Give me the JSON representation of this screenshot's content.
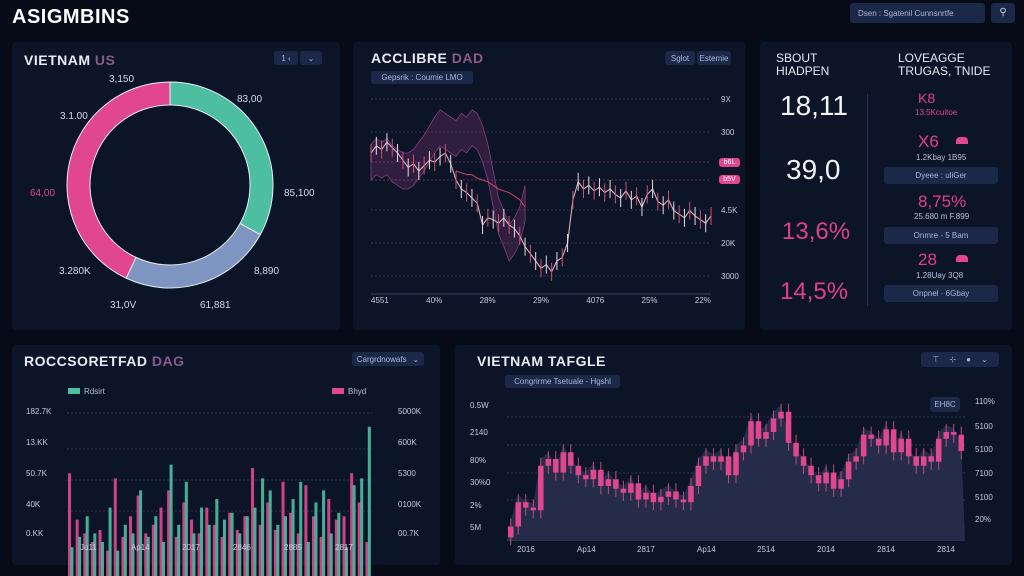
{
  "app": {
    "title": "ASIGMBINS",
    "search_text": "Dsen : Sgatenil Cunnsnrtfe",
    "search_button": "⚲"
  },
  "colors": {
    "teal": "#4bbfa0",
    "pink": "#e0478f",
    "slate": "#7d95c0",
    "bg": "#070b18",
    "panel": "#0c1428"
  },
  "donut_panel": {
    "title": "VIETNAM",
    "title_accent": " US",
    "controls": [
      "1 ‹",
      "⌄"
    ],
    "labels": [
      "3,150",
      "83,00",
      "3.1.00",
      "85,100",
      "64,00",
      "8,890",
      "3.280K",
      "31,0V",
      "61,881"
    ]
  },
  "line_panel": {
    "title": "ACCLIBRE",
    "title_accent": " DAD",
    "buttons": [
      "Sglot",
      "Estemie"
    ],
    "filter": "Gepsrik : Coumie LMO",
    "y_ticks": [
      "9X",
      "300",
      "4.5K",
      "20K",
      "3000"
    ],
    "markers": [
      "b6L",
      "b5V"
    ],
    "x_ticks": [
      "4551",
      "40%",
      "28%",
      "29%",
      "4076",
      "25%",
      "22%"
    ]
  },
  "stats_panel": {
    "left_title": "SBOUT HIADPEN",
    "right_title": "LOVEAGGE TRUGAS, TNIDE",
    "left_values": [
      "18,11",
      "39,0",
      "13,6%",
      "14,5%"
    ],
    "right_items": [
      {
        "value": "K8",
        "sub": "13.5Kcuitoe",
        "button": ""
      },
      {
        "value": "X6",
        "sub": "1.2Kbay 1B95",
        "button": "Dyeee : uliGer"
      },
      {
        "value": "8,75%",
        "sub": "25.680 m F.899",
        "button": "Onmre - 5 Bam"
      },
      {
        "value": "28",
        "sub": "1.28Uay 3Q8",
        "button": "Onpnel · 6Gbay"
      }
    ]
  },
  "bar_panel": {
    "title": "ROCCSORETFAD",
    "title_accent": " DAG",
    "dropdown": "Cargrdnowafs",
    "legend": [
      "Rdsirt",
      "Bhyd"
    ],
    "y_left": [
      "182.7K",
      "13.KK",
      "50.7K",
      "40K",
      "0.KK"
    ],
    "y_right": [
      "5000K",
      "600K",
      "5300",
      "0100K",
      "00.7K"
    ],
    "x_ticks": [
      "Ju11",
      "Ap14",
      "2017",
      "2846",
      "2885",
      "2817"
    ]
  },
  "candle_panel": {
    "title": "VIETNAM TAFGLE",
    "filter": "Congrirme Tsetuale - Hgshl",
    "controls": [
      "⊤",
      "⊹",
      "●",
      "⌄"
    ],
    "badge": "EH8C",
    "y_left": [
      "0.5W",
      "2140",
      "80%",
      "30%0",
      "2%",
      "5M"
    ],
    "y_right": [
      "110%",
      "5100",
      "5100",
      "7100",
      "5100",
      "20%"
    ],
    "x_ticks": [
      "2016",
      "Ap14",
      "2817",
      "Ap14",
      "2514",
      "2014",
      "2814",
      "2814"
    ]
  },
  "chart_data": [
    {
      "type": "pie",
      "title": "VIETNAM US",
      "series": [
        {
          "name": "teal",
          "value": 33
        },
        {
          "name": "slate",
          "value": 24
        },
        {
          "name": "pink",
          "value": 43
        }
      ]
    },
    {
      "type": "line",
      "title": "ACCLIBRE DAD",
      "ylim": [
        0,
        100
      ],
      "series": [
        {
          "name": "price",
          "values": [
            70,
            74,
            72,
            76,
            73,
            70,
            66,
            62,
            64,
            60,
            63,
            66,
            65,
            68,
            70,
            64,
            55,
            50,
            48,
            45,
            42,
            30,
            34,
            33,
            31,
            34,
            30,
            28,
            24,
            18,
            14,
            10,
            6,
            8,
            4,
            10,
            12,
            20,
            44,
            54,
            50,
            52,
            49,
            51,
            48,
            50,
            47,
            45,
            49,
            44,
            46,
            40,
            47,
            50,
            43,
            41,
            44,
            38,
            36,
            34,
            38,
            35,
            33,
            31,
            35
          ]
        },
        {
          "name": "band",
          "values": [
            75,
            78,
            76,
            78,
            74,
            72,
            70,
            70,
            72,
            76,
            80,
            85,
            90,
            94,
            92,
            90,
            88,
            92,
            90,
            94,
            92,
            85,
            75,
            60,
            45,
            38,
            30,
            34,
            40,
            52
          ]
        },
        {
          "name": "ma",
          "values": [
            null,
            null,
            null,
            null,
            null,
            null,
            null,
            null,
            null,
            null,
            null,
            null,
            null,
            null,
            null,
            null,
            60,
            59,
            58,
            58,
            56,
            55,
            54,
            52,
            50,
            49,
            48,
            46,
            44,
            40
          ]
        }
      ]
    },
    {
      "type": "bar",
      "title": "ROCCSORETFAD DAG",
      "ylim": [
        0,
        100
      ],
      "series": [
        {
          "name": "Rdsirt",
          "values": [
            22,
            28,
            40,
            30,
            25,
            45,
            20,
            35,
            30,
            55,
            28,
            40,
            25,
            70,
            35,
            60,
            30,
            45,
            35,
            50,
            38,
            42,
            30,
            40,
            45,
            62,
            55,
            35,
            40,
            50,
            60,
            25,
            48,
            55,
            30,
            42,
            22,
            58,
            62,
            92
          ]
        },
        {
          "name": "Bhyd",
          "values": [
            65,
            38,
            30,
            25,
            32,
            20,
            62,
            28,
            40,
            52,
            30,
            35,
            45,
            55,
            28,
            48,
            38,
            30,
            45,
            35,
            28,
            42,
            32,
            40,
            68,
            35,
            48,
            32,
            60,
            42,
            30,
            58,
            40,
            28,
            50,
            38,
            40,
            65,
            48,
            25
          ]
        }
      ]
    },
    {
      "type": "candlestick",
      "title": "VIETNAM TAFGLE",
      "ylim": [
        0,
        100
      ],
      "closes": [
        10,
        28,
        24,
        22,
        55,
        60,
        50,
        65,
        55,
        48,
        45,
        52,
        40,
        45,
        38,
        35,
        42,
        30,
        35,
        28,
        32,
        36,
        30,
        28,
        40,
        55,
        62,
        58,
        62,
        48,
        65,
        70,
        88,
        75,
        80,
        90,
        95,
        72,
        62,
        55,
        48,
        42,
        50,
        38,
        45,
        58,
        62,
        78,
        75,
        70,
        82,
        65,
        75,
        62,
        55,
        62,
        58,
        75,
        80,
        78,
        66
      ]
    }
  ]
}
